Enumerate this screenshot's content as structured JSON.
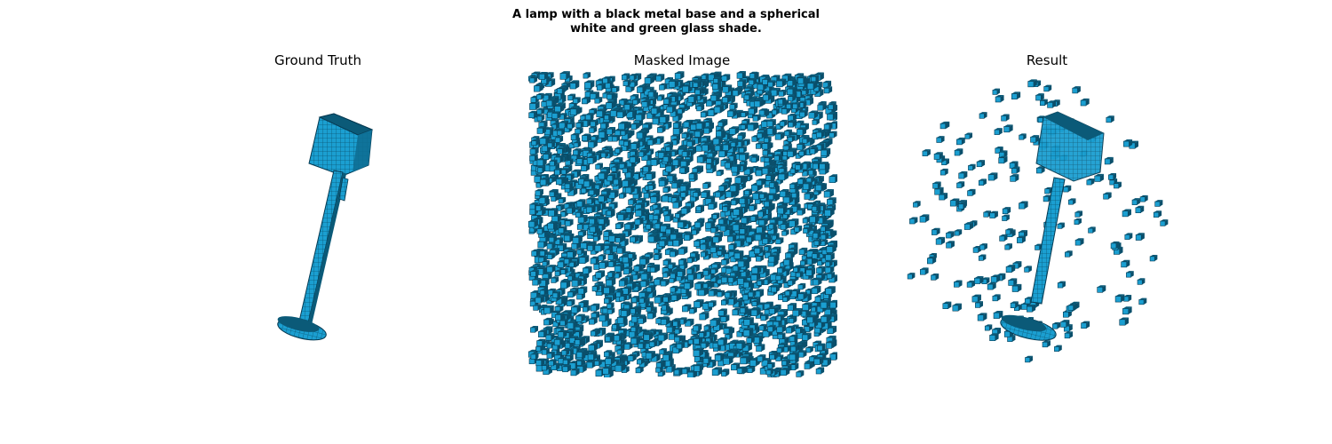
{
  "figure": {
    "suptitle_line1": "A lamp with a black metal base and a spherical",
    "suptitle_line2": "white and green glass shade."
  },
  "panels": [
    {
      "title": "Ground Truth",
      "content": "lamp-voxels"
    },
    {
      "title": "Masked Image",
      "content": "noise-voxels"
    },
    {
      "title": "Result",
      "content": "reconstruction-voxels"
    }
  ],
  "colors": {
    "voxel_face": "#1b9fd1",
    "voxel_dark": "#0b5a78",
    "voxel_edge": "#063a52",
    "background": "#ffffff"
  }
}
